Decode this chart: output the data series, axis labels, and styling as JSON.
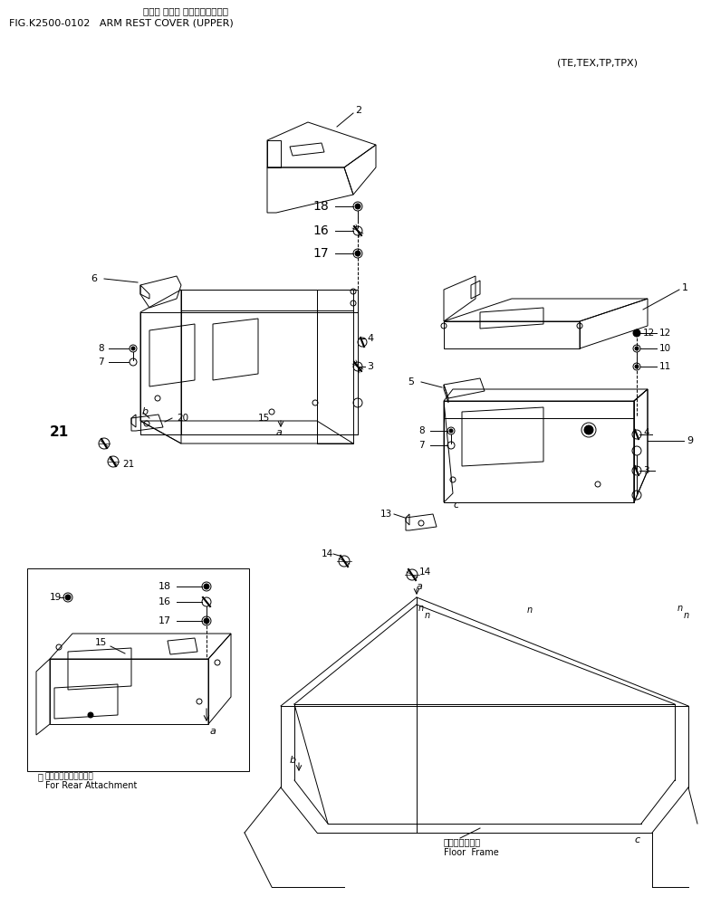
{
  "title_japanese": "アーム レスト カバー（アッパ）",
  "title_english": "FIG.K2500-0102   ARM REST COVER (UPPER)",
  "subtitle": "(TE,TEX,TP,TPX)",
  "bg_color": "#ffffff",
  "line_color": "#000000",
  "text_color": "#000000",
  "fig_width": 7.85,
  "fig_height": 10.01,
  "dpi": 100,
  "inset_label_japanese": "後方用アタッチメント",
  "inset_label_english": "For Rear Attachment",
  "floor_frame_japanese": "フロアフレーム",
  "floor_frame_english": "Floor  Frame"
}
